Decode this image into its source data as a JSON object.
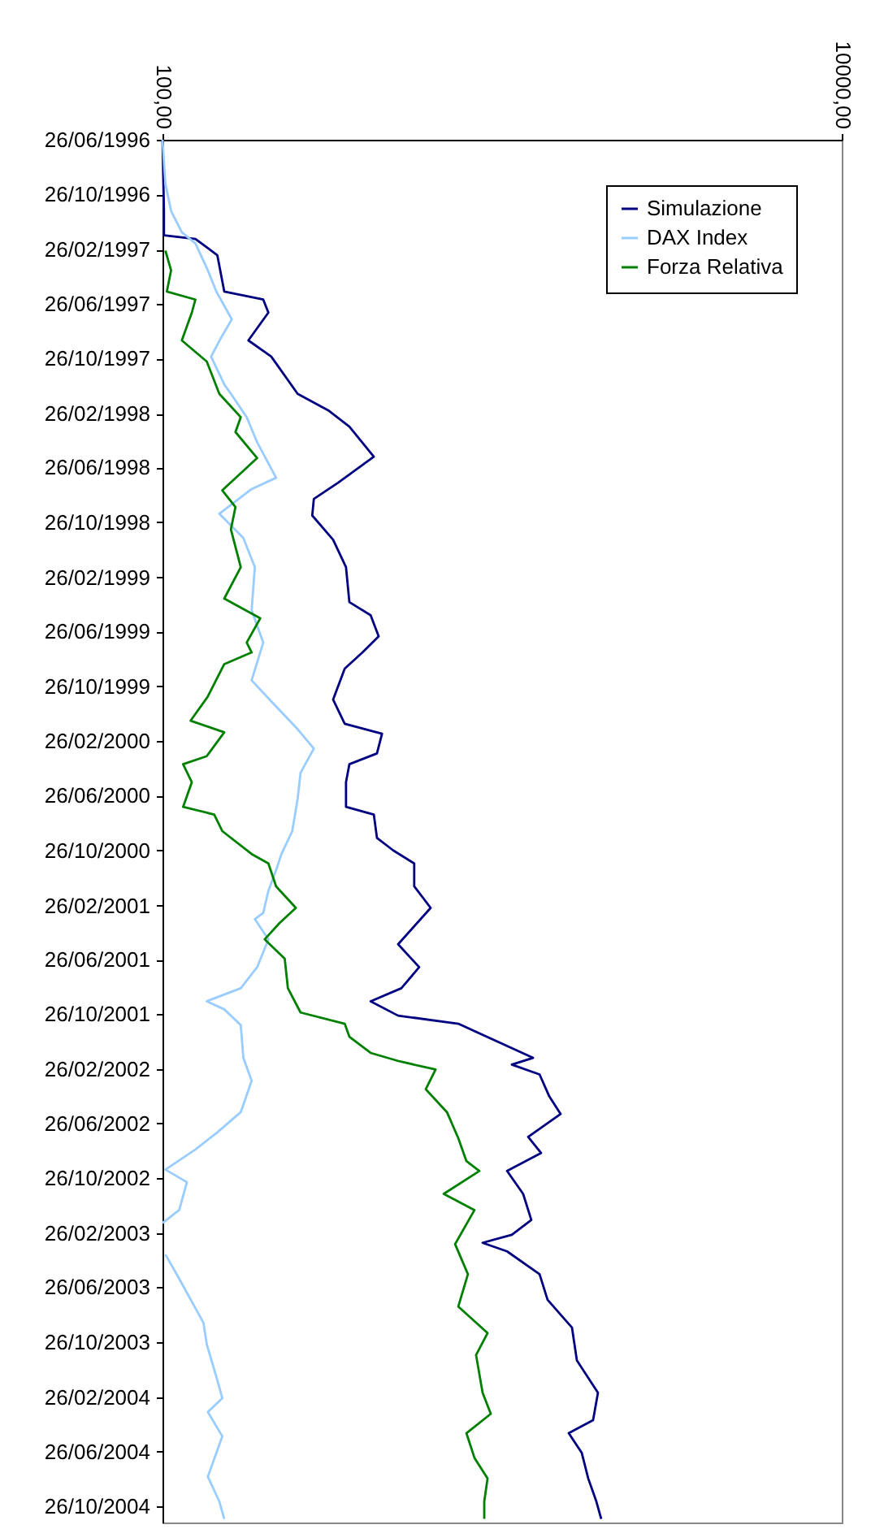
{
  "chart_data": {
    "type": "line",
    "orientation": "horizontal",
    "log": "x",
    "legend": "top right",
    "ylim": [
      "2004-12-01",
      "1996-06-26"
    ],
    "yticks": [
      {
        "value": "1996-06-26",
        "label": "26/06/1996"
      },
      {
        "value": "1996-10-26",
        "label": "26/10/1996"
      },
      {
        "value": "1997-02-26",
        "label": "26/02/1997"
      },
      {
        "value": "1997-06-26",
        "label": "26/06/1997"
      },
      {
        "value": "1997-10-26",
        "label": "26/10/1997"
      },
      {
        "value": "1998-02-26",
        "label": "26/02/1998"
      },
      {
        "value": "1998-06-26",
        "label": "26/06/1998"
      },
      {
        "value": "1998-10-26",
        "label": "26/10/1998"
      },
      {
        "value": "1999-02-26",
        "label": "26/02/1999"
      },
      {
        "value": "1999-06-26",
        "label": "26/06/1999"
      },
      {
        "value": "1999-10-26",
        "label": "26/10/1999"
      },
      {
        "value": "2000-02-26",
        "label": "26/02/2000"
      },
      {
        "value": "2000-06-26",
        "label": "26/06/2000"
      },
      {
        "value": "2000-10-26",
        "label": "26/10/2000"
      },
      {
        "value": "2001-02-26",
        "label": "26/02/2001"
      },
      {
        "value": "2001-06-26",
        "label": "26/06/2001"
      },
      {
        "value": "2001-10-26",
        "label": "26/10/2001"
      },
      {
        "value": "2002-02-26",
        "label": "26/02/2002"
      },
      {
        "value": "2002-06-26",
        "label": "26/06/2002"
      },
      {
        "value": "2002-10-26",
        "label": "26/10/2002"
      },
      {
        "value": "2003-02-26",
        "label": "26/02/2003"
      },
      {
        "value": "2003-06-26",
        "label": "26/06/2003"
      },
      {
        "value": "2003-10-26",
        "label": "26/10/2003"
      },
      {
        "value": "2004-02-26",
        "label": "26/02/2004"
      },
      {
        "value": "2004-06-26",
        "label": "26/06/2004"
      },
      {
        "value": "2004-10-26",
        "label": "26/10/2004"
      }
    ],
    "xlim": [
      100,
      10000
    ],
    "xticks": [
      {
        "value": 100,
        "label": "100,00"
      },
      {
        "value": 10000,
        "label": "10000,00"
      }
    ],
    "series": [
      {
        "name": "Simulazione",
        "color": "#000080",
        "x": [
          "1996-06-26",
          "1996-12-02",
          "1997-01-25",
          "1997-02-02",
          "1997-03-10",
          "1997-05-30",
          "1997-06-17",
          "1997-07-16",
          "1997-09-16",
          "1997-10-22",
          "1998-01-13",
          "1998-02-19",
          "1998-03-27",
          "1998-06-02",
          "1998-07-30",
          "1998-09-04",
          "1998-10-11",
          "1998-12-04",
          "1999-02-03",
          "1999-04-22",
          "1999-05-21",
          "1999-07-07",
          "1999-08-12",
          "1999-09-17",
          "1999-11-25",
          "2000-01-18",
          "2000-02-09",
          "2000-03-24",
          "2000-04-17",
          "2000-05-27",
          "2000-07-21",
          "2000-08-07",
          "2000-09-28",
          "2000-10-26",
          "2000-11-24",
          "2001-01-14",
          "2001-03-03",
          "2001-05-23",
          "2001-07-13",
          "2001-08-29",
          "2001-09-27",
          "2001-10-29",
          "2001-11-16",
          "2002-01-31",
          "2002-02-15",
          "2002-03-09",
          "2002-04-27",
          "2002-06-05",
          "2002-07-26",
          "2002-08-31",
          "2002-10-10",
          "2002-11-30",
          "2003-01-27",
          "2003-03-01",
          "2003-03-19",
          "2003-04-07",
          "2003-05-28",
          "2003-07-24",
          "2003-09-24",
          "2003-12-06",
          "2004-02-16",
          "2004-04-17",
          "2004-05-16",
          "2004-06-29",
          "2004-08-25",
          "2004-10-15",
          "2004-11-23"
        ],
        "values": [
          100,
          101,
          101,
          125,
          145,
          152,
          198,
          205,
          179,
          209,
          250,
          308,
          355,
          419,
          329,
          279,
          276,
          318,
          347,
          355,
          410,
          433,
          388,
          344,
          318,
          344,
          443,
          428,
          355,
          347,
          347,
          419,
          428,
          478,
          551,
          551,
          616,
          494,
          570,
          505,
          410,
          494,
          743,
          1233,
          1068,
          1289,
          1377,
          1487,
          1193,
          1302,
          1034,
          1153,
          1219,
          1068,
          876,
          1034,
          1289,
          1361,
          1606,
          1660,
          1915,
          1853,
          1571,
          1716,
          1793,
          1894,
          1958
        ]
      },
      {
        "name": "DAX Index",
        "color": "#99ccff",
        "x": [
          "1996-06-26",
          "1996-10-02",
          "1996-12-02",
          "1997-01-18",
          "1997-02-12",
          "1997-04-13",
          "1997-05-30",
          "1997-07-31",
          "1997-09-05",
          "1997-10-22",
          "1997-12-23",
          "1998-01-13",
          "1998-03-06",
          "1998-05-01",
          "1998-07-19",
          "1998-08-13",
          "1998-10-07",
          "1998-11-30",
          "1999-02-03",
          "1999-05-10",
          "1999-07-21",
          "1999-10-13",
          "1999-11-29",
          "2000-01-30",
          "2000-03-13",
          "2000-05-06",
          "2000-07-03",
          "2000-09-13",
          "2000-11-03",
          "2000-12-09",
          "2001-01-24",
          "2001-03-14",
          "2001-03-28",
          "2001-05-12",
          "2001-07-13",
          "2001-08-29",
          "2001-09-27",
          "2001-10-15",
          "2001-11-19",
          "2002-01-31",
          "2002-03-23",
          "2002-06-01",
          "2002-07-18",
          "2002-08-23",
          "2002-10-07",
          "2002-11-04",
          "2003-01-05",
          "2003-02-03",
          "2003-03-11",
          "2003-04-14",
          "2003-06-07",
          "2003-09-13",
          "2003-10-31",
          "2004-01-11",
          "2004-02-28",
          "2004-03-30",
          "2004-05-23",
          "2004-08-21",
          "2004-10-15",
          "2004-11-23"
        ],
        "values": [
          100,
          102,
          106,
          114,
          125,
          136,
          144,
          160,
          150,
          139,
          152,
          159,
          177,
          190,
          216,
          183,
          147,
          173,
          187,
          183,
          198,
          183,
          209,
          250,
          279,
          255,
          250,
          241,
          224,
          216,
          205,
          198,
          187,
          205,
          190,
          170,
          135,
          152,
          170,
          173,
          183,
          170,
          144,
          125,
          102,
          118,
          112,
          100,
          null,
          102,
          112,
          132,
          135,
          144,
          150,
          136,
          150,
          136,
          147,
          152
        ]
      },
      {
        "name": "Forza Relativa",
        "color": "#008000",
        "x": [
          "1997-02-28",
          "1997-04-13",
          "1997-05-30",
          "1997-06-17",
          "1997-07-16",
          "1997-09-16",
          "1997-11-02",
          "1998-01-13",
          "1998-03-06",
          "1998-04-08",
          "1998-06-05",
          "1998-08-16",
          "1998-09-22",
          "1998-11-11",
          "1999-02-03",
          "1999-04-14",
          "1999-05-28",
          "1999-07-21",
          "1999-08-12",
          "1999-09-07",
          "1999-11-18",
          "2000-01-11",
          "2000-02-06",
          "2000-03-30",
          "2000-04-17",
          "2000-05-27",
          "2000-07-21",
          "2000-08-07",
          "2000-09-13",
          "2000-11-03",
          "2000-11-24",
          "2001-01-14",
          "2001-03-03",
          "2001-04-06",
          "2001-05-12",
          "2001-06-24",
          "2001-08-29",
          "2001-10-22",
          "2001-11-16",
          "2001-12-15",
          "2002-01-20",
          "2002-02-08",
          "2002-02-26",
          "2002-04-11",
          "2002-06-01",
          "2002-07-29",
          "2002-09-18",
          "2002-10-10",
          "2002-11-30",
          "2003-01-05",
          "2003-03-22",
          "2003-05-28",
          "2003-08-08",
          "2003-10-06",
          "2003-11-24",
          "2004-02-16",
          "2004-04-03",
          "2004-05-16",
          "2004-07-10",
          "2004-08-25",
          "2004-10-15",
          "2004-11-23"
        ],
        "values": [
          102,
          106,
          103,
          125,
          122,
          114,
          135,
          147,
          170,
          164,
          190,
          150,
          164,
          159,
          170,
          152,
          194,
          177,
          183,
          152,
          136,
          121,
          152,
          135,
          115,
          122,
          115,
          142,
          150,
          183,
          205,
          216,
          247,
          221,
          200,
          229,
          234,
          255,
          344,
          355,
          410,
          500,
          637,
          596,
          688,
          743,
          785,
          857,
          673,
          829,
          727,
          793,
          743,
          906,
          838,
          876,
          926,
          785,
          829,
          906,
          886,
          886
        ]
      }
    ]
  }
}
